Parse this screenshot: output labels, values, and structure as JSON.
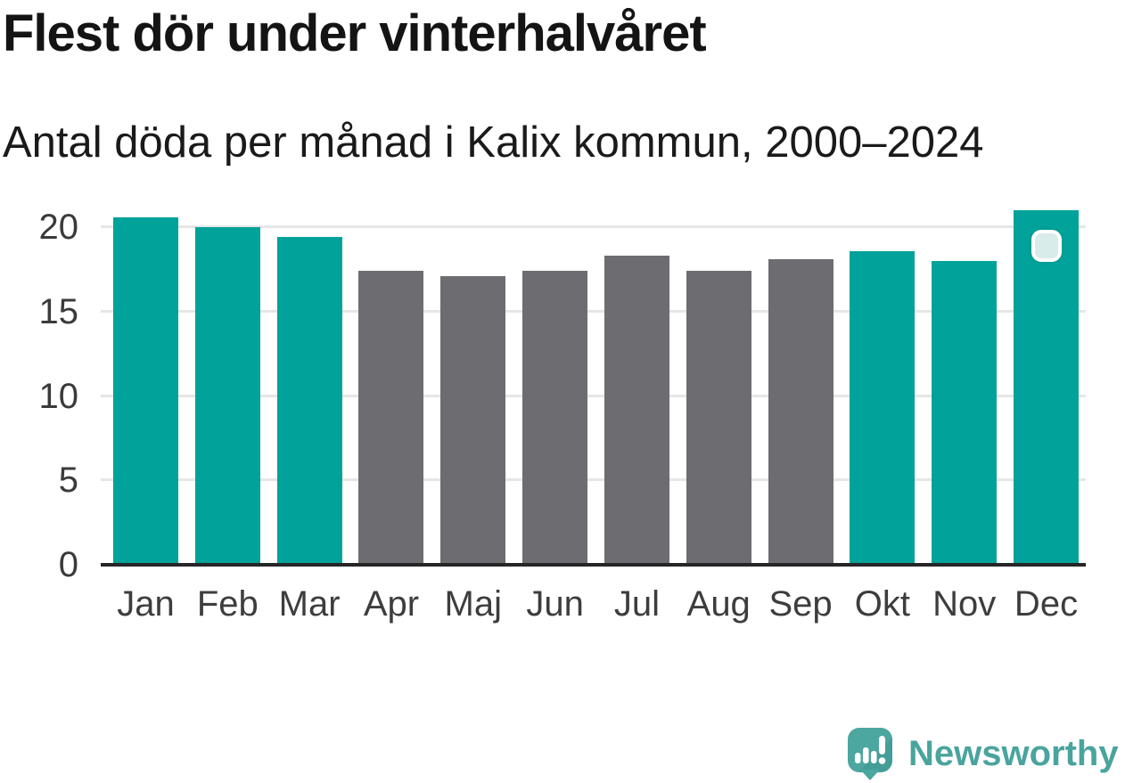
{
  "header": {
    "title": "Flest dör under vinterhalvåret",
    "subtitle": "Antal döda per månad i Kalix kommun, 2000–2024"
  },
  "chart_data": {
    "type": "bar",
    "title": "Flest dör under vinterhalvåret",
    "subtitle": "Antal döda per månad i Kalix kommun, 2000–2024",
    "categories": [
      "Jan",
      "Feb",
      "Mar",
      "Apr",
      "Maj",
      "Jun",
      "Jul",
      "Aug",
      "Sep",
      "Okt",
      "Nov",
      "Dec"
    ],
    "values": [
      20.6,
      20.0,
      19.4,
      17.4,
      17.1,
      17.4,
      18.3,
      17.4,
      18.1,
      18.6,
      18.0,
      21.0
    ],
    "winter_flags": [
      true,
      true,
      true,
      false,
      false,
      false,
      false,
      false,
      false,
      true,
      true,
      true
    ],
    "xlabel": "",
    "ylabel": "",
    "yticks": [
      0,
      5,
      10,
      15,
      20
    ],
    "ylim": [
      0,
      21.2
    ],
    "grid": "horizontal-light",
    "legend_position": "none",
    "colors": {
      "winter_bar": "#00a29a",
      "summer_bar": "#6d6c71",
      "gridline": "#e6e6e6",
      "axis": "#262626",
      "tick_label": "#3a3a3a"
    },
    "marker": {
      "target_month": "Dec",
      "shape": "rounded-square",
      "fill": "#d8ecea",
      "border_color": "#ffffff"
    }
  },
  "branding": {
    "label": "Newsworthy",
    "color": "#4aa49e",
    "icon": "newsworthy-speech-bubble-chart-icon"
  }
}
